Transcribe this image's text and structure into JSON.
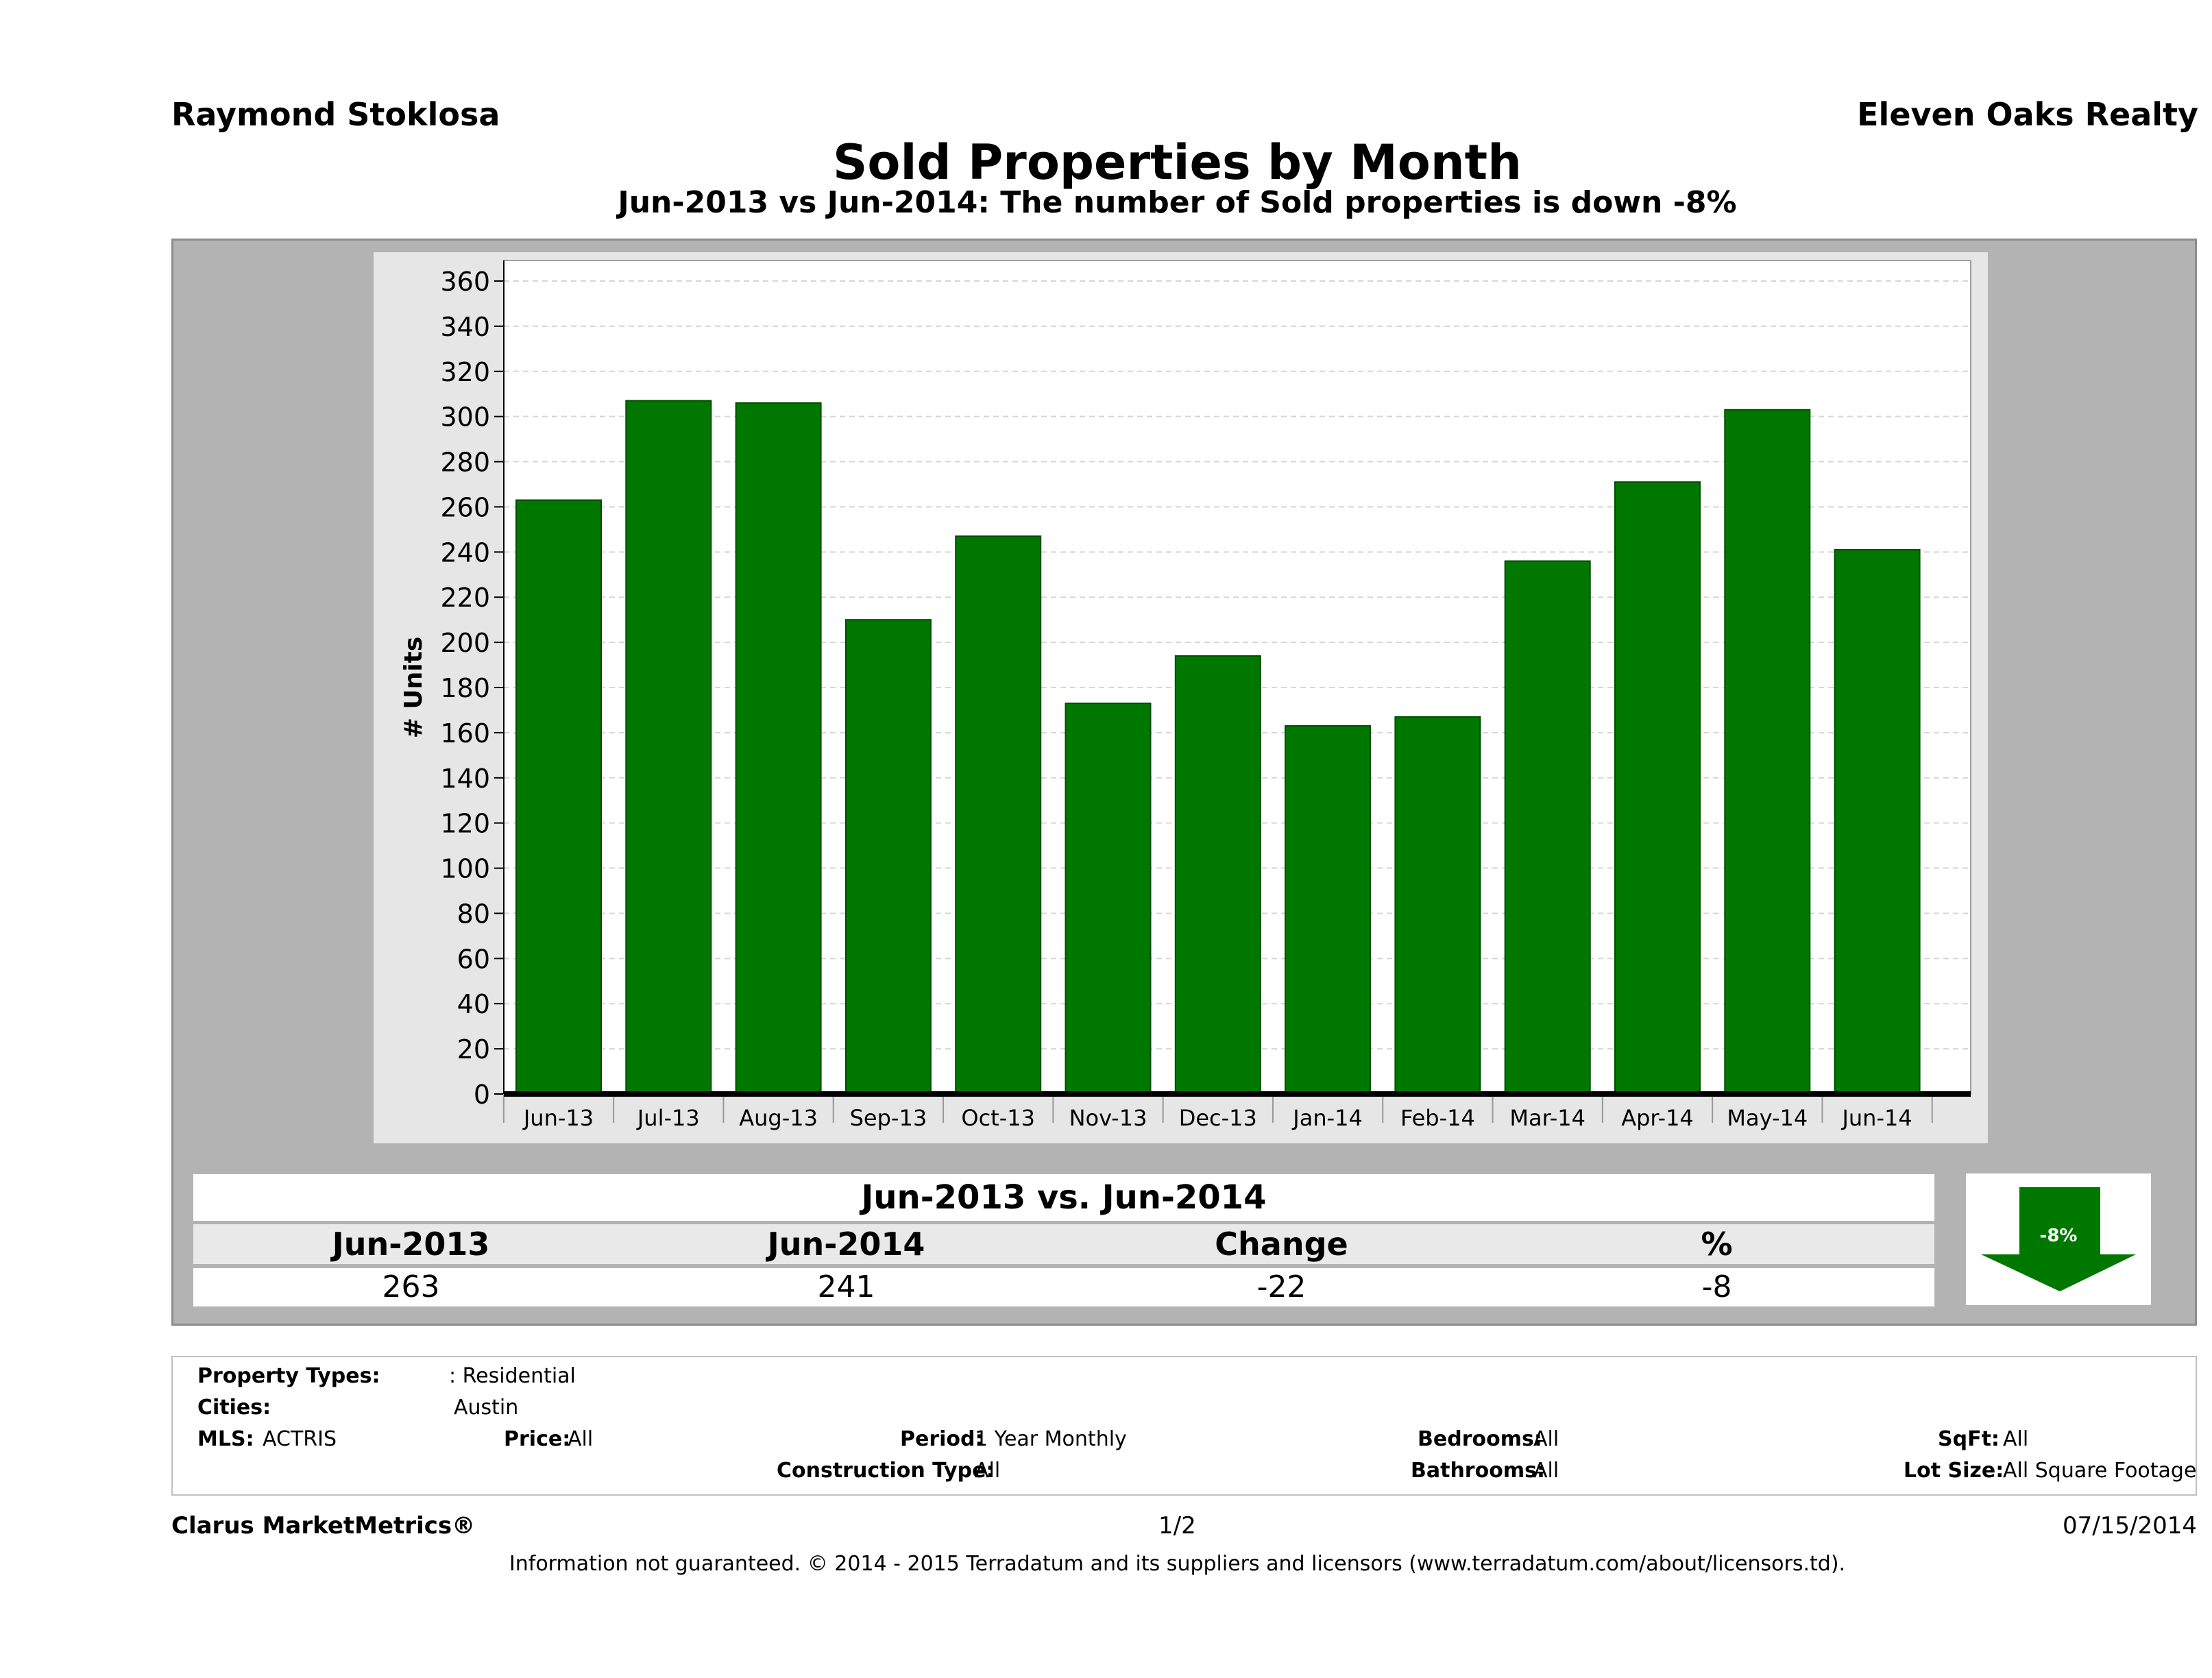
{
  "header": {
    "agent_name": "Raymond Stoklosa",
    "brokerage": "Eleven Oaks Realty",
    "title": "Sold Properties by Month",
    "subtitle": "Jun-2013 vs Jun-2014: The number of Sold  properties is down -8%"
  },
  "chart_data": {
    "type": "bar",
    "title": "Sold Properties by Month",
    "ylabel": "# Units",
    "xlabel": "",
    "ylim": [
      0,
      360
    ],
    "ytick_step": 20,
    "grid": true,
    "bar_color": "#007800",
    "categories": [
      "Jun-13",
      "Jul-13",
      "Aug-13",
      "Sep-13",
      "Oct-13",
      "Nov-13",
      "Dec-13",
      "Jan-14",
      "Feb-14",
      "Mar-14",
      "Apr-14",
      "May-14",
      "Jun-14"
    ],
    "values": [
      263,
      307,
      306,
      210,
      247,
      173,
      194,
      163,
      167,
      236,
      271,
      303,
      241
    ]
  },
  "comparison": {
    "title": "Jun-2013 vs. Jun-2014",
    "headers": [
      "Jun-2013",
      "Jun-2014",
      "Change",
      "%"
    ],
    "values": [
      "263",
      "241",
      "-22",
      "-8"
    ],
    "badge": "-8%",
    "badge_color": "#007800"
  },
  "criteria": {
    "property_types_label": "Property Types:",
    "property_types_value": ": Residential",
    "cities_label": "Cities:",
    "cities_value": "Austin",
    "mls_label": "MLS:",
    "mls_value": "ACTRIS",
    "price_label": "Price:",
    "price_value": "All",
    "period_label": "Period:",
    "period_value": "1 Year Monthly",
    "construction_label": "Construction Type:",
    "construction_value": "All",
    "bedrooms_label": "Bedrooms:",
    "bedrooms_value": "All",
    "bathrooms_label": "Bathrooms:",
    "bathrooms_value": "All",
    "sqft_label": "SqFt:",
    "sqft_value": "All",
    "lotsize_label": "Lot Size:",
    "lotsize_value": "All Square Footage"
  },
  "footer": {
    "product": "Clarus MarketMetrics®",
    "page": "1/2",
    "date": "07/15/2014",
    "disclaimer": "Information not guaranteed. © 2014 - 2015 Terradatum and its suppliers and licensors (www.terradatum.com/about/licensors.td)."
  }
}
